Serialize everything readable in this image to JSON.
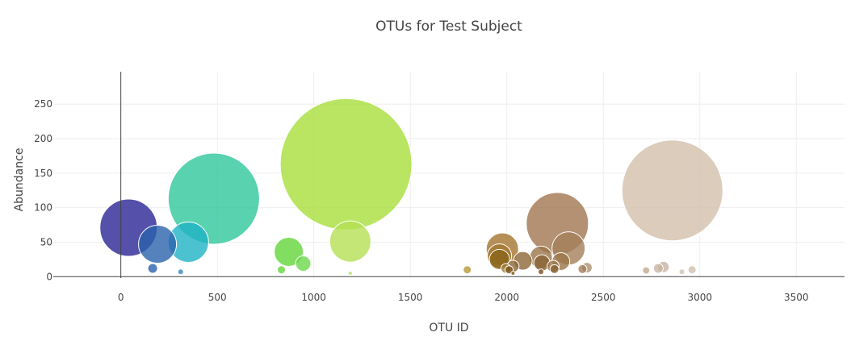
{
  "chart_data": {
    "type": "scatter",
    "mode": "bubble",
    "title": "OTUs for Test Subject",
    "xlabel": "OTU ID",
    "ylabel": "Abundance",
    "xlim": [
      -350,
      3750
    ],
    "ylim": [
      -2,
      297
    ],
    "xticks": [
      0,
      500,
      1000,
      1500,
      2000,
      2500,
      3000,
      3500
    ],
    "yticks": [
      0,
      50,
      100,
      150,
      200,
      250
    ],
    "grid": true,
    "marker_size_encodes": "abundance",
    "points": [
      {
        "x": 40,
        "y": 71,
        "color": "#2a2494"
      },
      {
        "x": 190,
        "y": 47,
        "color": "#2a62ad"
      },
      {
        "x": 165,
        "y": 12,
        "color": "#2a62ad"
      },
      {
        "x": 310,
        "y": 7,
        "color": "#2f8bc0"
      },
      {
        "x": 350,
        "y": 50,
        "color": "#1fb3c6"
      },
      {
        "x": 482,
        "y": 113,
        "color": "#2ec79b"
      },
      {
        "x": 832,
        "y": 10,
        "color": "#63d63a"
      },
      {
        "x": 870,
        "y": 36,
        "color": "#63d63a"
      },
      {
        "x": 945,
        "y": 19,
        "color": "#6bd84a"
      },
      {
        "x": 1167,
        "y": 163,
        "color": "#a8df3c"
      },
      {
        "x": 1189,
        "y": 51,
        "color": "#b4e054"
      },
      {
        "x": 1189,
        "y": 5,
        "color": "#b8e060"
      },
      {
        "x": 1795,
        "y": 10,
        "color": "#b59a36"
      },
      {
        "x": 1977,
        "y": 40,
        "color": "#a4742e"
      },
      {
        "x": 1962,
        "y": 30,
        "color": "#a2772f"
      },
      {
        "x": 1962,
        "y": 25,
        "color": "#8a6419"
      },
      {
        "x": 1995,
        "y": 12,
        "color": "#9c7a3a"
      },
      {
        "x": 2012,
        "y": 10,
        "color": "#7a5414"
      },
      {
        "x": 2032,
        "y": 15,
        "color": "#8c6838"
      },
      {
        "x": 2032,
        "y": 5,
        "color": "#7a5414"
      },
      {
        "x": 2083,
        "y": 23,
        "color": "#8c6838"
      },
      {
        "x": 2177,
        "y": 28,
        "color": "#9a7449"
      },
      {
        "x": 2182,
        "y": 20,
        "color": "#8a6134"
      },
      {
        "x": 2177,
        "y": 7,
        "color": "#7a5020"
      },
      {
        "x": 2240,
        "y": 15,
        "color": "#9a7449"
      },
      {
        "x": 2247,
        "y": 11,
        "color": "#8a6134"
      },
      {
        "x": 2262,
        "y": 77,
        "color": "#a0764f"
      },
      {
        "x": 2280,
        "y": 22,
        "color": "#9a7449"
      },
      {
        "x": 2320,
        "y": 41,
        "color": "#a4805a"
      },
      {
        "x": 2392,
        "y": 11,
        "color": "#a4805a"
      },
      {
        "x": 2415,
        "y": 13,
        "color": "#b0906e"
      },
      {
        "x": 2722,
        "y": 9,
        "color": "#c2a890"
      },
      {
        "x": 2785,
        "y": 12,
        "color": "#c8b4a2"
      },
      {
        "x": 2812,
        "y": 14,
        "color": "#c8b4a2"
      },
      {
        "x": 2858,
        "y": 125,
        "color": "#d2bfab"
      },
      {
        "x": 2907,
        "y": 7,
        "color": "#d0c0b0"
      },
      {
        "x": 2960,
        "y": 10,
        "color": "#d0c0b0"
      }
    ]
  }
}
